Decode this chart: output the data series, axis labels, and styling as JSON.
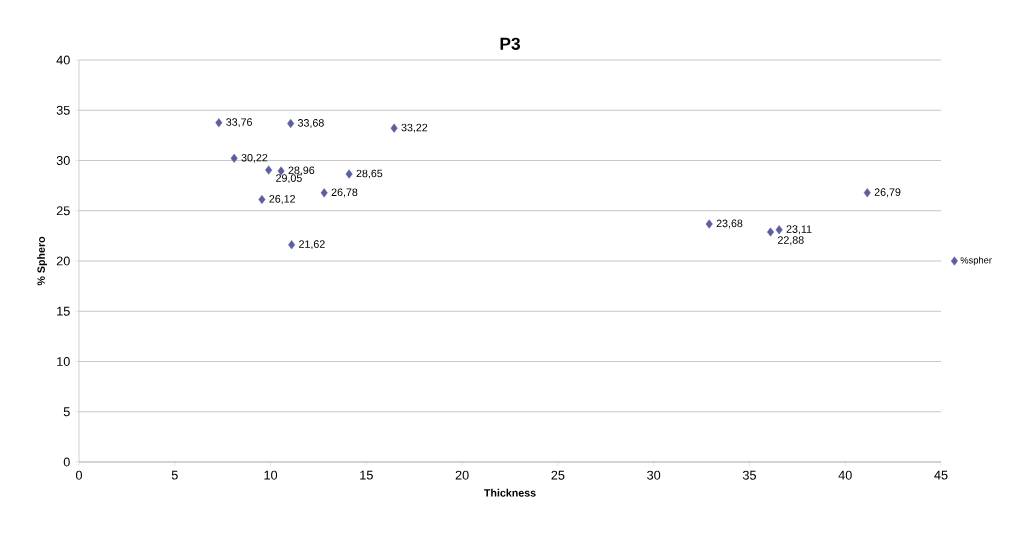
{
  "chart_data": {
    "type": "scatter",
    "title": "P3",
    "xlabel": "Thickness",
    "ylabel": "% Sphero",
    "x": [
      7.3,
      11.05,
      16.45,
      8.1,
      10.55,
      9.9,
      14.1,
      12.8,
      9.55,
      11.1,
      32.9,
      36.55,
      36.1,
      41.15
    ],
    "series": [
      {
        "name": "%spher",
        "color": "#5d5ea0",
        "values": [
          33.76,
          33.68,
          33.22,
          30.22,
          28.96,
          29.05,
          28.65,
          26.78,
          26.12,
          21.62,
          23.68,
          23.11,
          22.88,
          26.79
        ],
        "value_labels": [
          "33,76",
          "33,68",
          "33,22",
          "30,22",
          "28,96",
          "29,05",
          "28,65",
          "26,78",
          "26,12",
          "21,62",
          "23,68",
          "23,11",
          "22,88",
          "26,79"
        ]
      }
    ],
    "xlim": [
      0,
      45
    ],
    "ylim": [
      0,
      40
    ],
    "xticks": [
      0,
      5,
      10,
      15,
      20,
      25,
      30,
      35,
      40,
      45
    ],
    "yticks": [
      0,
      5,
      10,
      15,
      20,
      25,
      30,
      35,
      40
    ],
    "grid": "y",
    "legend": "right",
    "marker": "diamond"
  }
}
